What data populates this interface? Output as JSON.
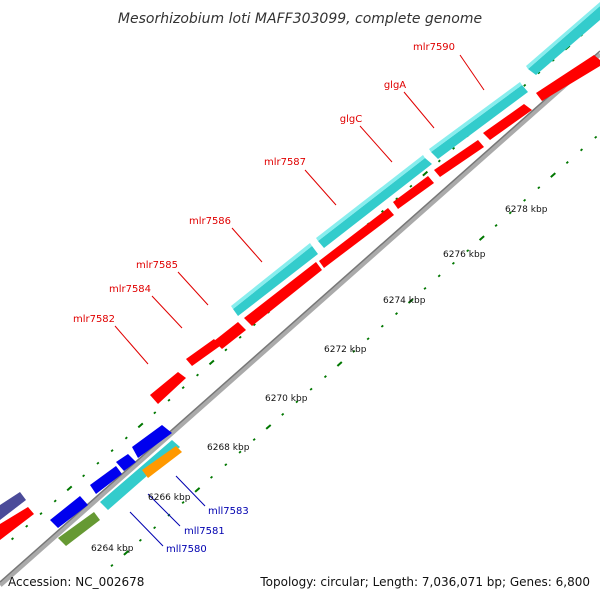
{
  "title": "Mesorhizobium loti MAFF303099, complete genome",
  "footer": {
    "accession": "Accession: NC_002678",
    "topology": "Topology: circular; Length: 7,036,071 bp; Genes: 6,800"
  },
  "labels_forward": [
    "mlr7590",
    "glgA",
    "glgC",
    "mlr7587",
    "mlr7586",
    "mlr7585",
    "mlr7584",
    "mlr7582"
  ],
  "labels_reverse": [
    "mll7583",
    "mll7581",
    "mll7580"
  ],
  "ticks": [
    "6278 kbp",
    "6276 kbp",
    "6274 kbp",
    "6272 kbp",
    "6270 kbp",
    "6268 kbp",
    "6266 kbp",
    "6264 kbp"
  ],
  "colors": {
    "forward_gene": "#ff0000",
    "forward_cds": "#33cccc",
    "reverse_gene": "#0000ee",
    "reverse_cds": "#33cccc",
    "orange_gene": "#ff9900",
    "olive_gene": "#669933",
    "purple_gene": "#4b4b99",
    "backbone": "#888888",
    "tick": "#007700",
    "forward_label": "#e00000",
    "reverse_label": "#0000b0"
  }
}
